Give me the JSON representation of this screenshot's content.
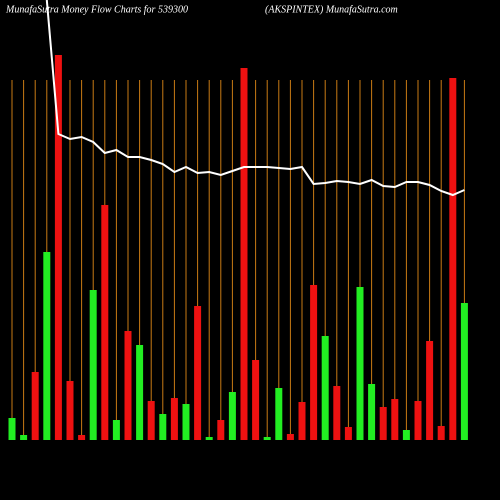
{
  "chart_data": {
    "type": "bar",
    "title": "MunafaSutra  Money Flow  Charts for 539300",
    "subtitle": "(AKSPINTEX) MunafaSutra.com",
    "categories": [
      null,
      null,
      null,
      null,
      null,
      null,
      null,
      null,
      null,
      null,
      null,
      null,
      null,
      null,
      null,
      null,
      null,
      null,
      null,
      null,
      null,
      null,
      null,
      null,
      null,
      null,
      null,
      null,
      null,
      null,
      null,
      null,
      null,
      null,
      null,
      null,
      null,
      null,
      null,
      null
    ],
    "ylim": [
      0,
      440
    ],
    "series": [
      {
        "values": [
          22,
          5,
          68,
          188,
          385,
          59,
          5,
          150,
          235,
          20,
          109,
          95,
          39,
          26,
          42,
          36,
          134,
          3,
          20,
          48,
          372,
          80,
          3,
          52,
          6,
          38,
          155,
          104,
          54,
          13,
          153,
          56,
          33,
          41,
          10,
          39,
          99,
          14,
          362,
          137
        ],
        "colors": [
          "#22ee22",
          "#22ee22",
          "#ee1111",
          "#22ee22",
          "#ee1111",
          "#ee1111",
          "#ee1111",
          "#22ee22",
          "#ee1111",
          "#22ee22",
          "#ee1111",
          "#22ee22",
          "#ee1111",
          "#22ee22",
          "#ee1111",
          "#22ee22",
          "#ee1111",
          "#22ee22",
          "#ee1111",
          "#22ee22",
          "#ee1111",
          "#ee1111",
          "#22ee22",
          "#22ee22",
          "#ee1111",
          "#ee1111",
          "#ee1111",
          "#22ee22",
          "#ee1111",
          "#ee1111",
          "#22ee22",
          "#22ee22",
          "#ee1111",
          "#ee1111",
          "#22ee22",
          "#ee1111",
          "#ee1111",
          "#ee1111",
          "#ee1111",
          "#22ee22"
        ]
      },
      {
        "type": "line",
        "color": "#ffffff",
        "values": [
          null,
          null,
          null,
          440,
          306,
          301,
          303,
          298,
          287,
          290,
          283,
          283,
          280,
          276,
          268,
          273,
          267,
          268,
          265,
          269,
          273,
          273,
          273,
          272,
          271,
          273,
          256,
          257,
          259,
          258,
          256,
          260,
          254,
          253,
          258,
          258,
          255,
          249,
          245,
          250
        ]
      }
    ]
  }
}
